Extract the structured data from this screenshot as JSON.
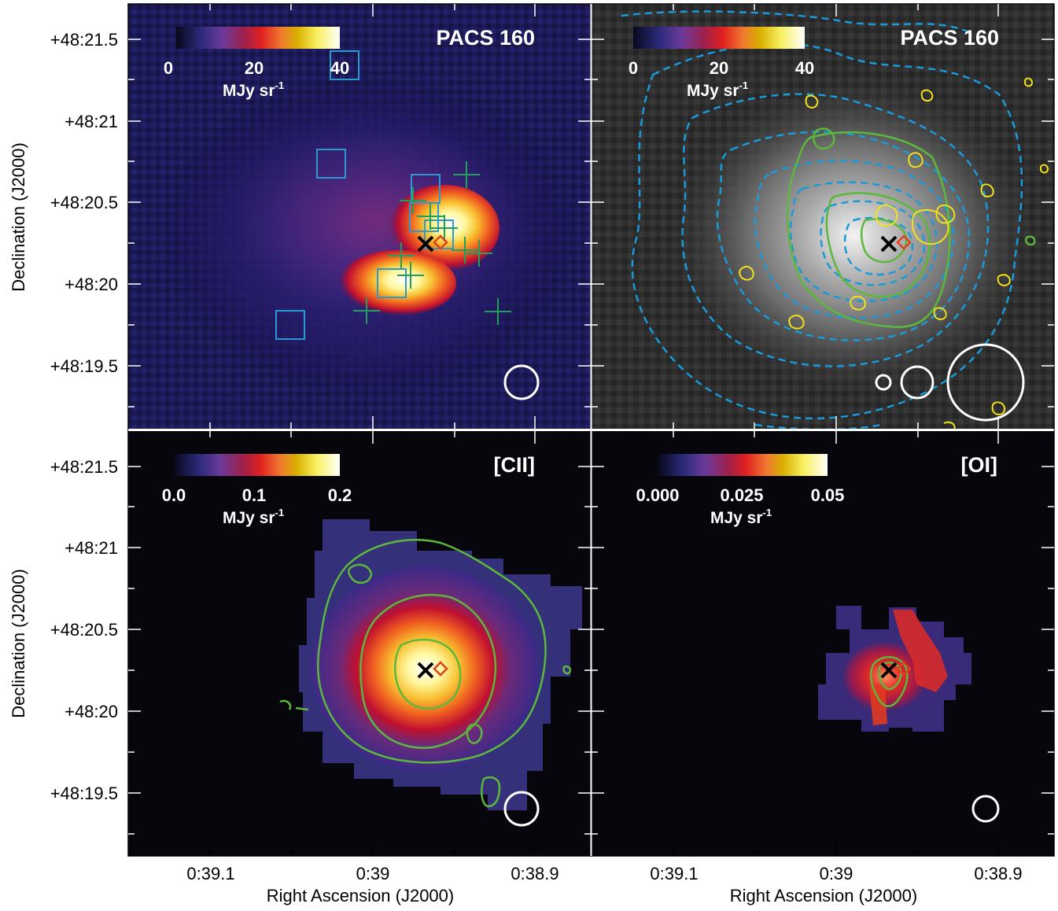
{
  "figure": {
    "y_axis_label": "Declination (J2000)",
    "x_axis_label": "Right Ascension (J2000)",
    "y_ticks": [
      "+48:21.5",
      "+48:21",
      "+48:20.5",
      "+48:20",
      "+48:19.5"
    ],
    "x_ticks": [
      "0:39.1",
      "0:39",
      "0:38.9"
    ]
  },
  "panels": [
    {
      "id": "tl",
      "title": "PACS 160",
      "colormap": "heat",
      "colorbar_ticks": [
        "0",
        "20",
        "40"
      ],
      "colorbar_unit": "MJy sr",
      "colorbar_unit_sup": "-1",
      "grayscale": false,
      "overlays": [
        "blue squares",
        "green crosses",
        "black cross",
        "red diamond",
        "beam circle"
      ]
    },
    {
      "id": "tr",
      "title": "PACS 160",
      "colormap": "heat",
      "colorbar_ticks": [
        "0",
        "20",
        "40"
      ],
      "colorbar_unit": "MJy sr",
      "colorbar_unit_sup": "-1",
      "grayscale": true,
      "overlays": [
        "blue dashed contours",
        "green contours",
        "yellow contours",
        "black cross",
        "red diamond",
        "three beam circles"
      ]
    },
    {
      "id": "bl",
      "title": "[CII]",
      "colormap": "heat",
      "colorbar_ticks": [
        "0.0",
        "0.1",
        "0.2"
      ],
      "colorbar_unit": "MJy sr",
      "colorbar_unit_sup": "-1",
      "grayscale": false,
      "overlays": [
        "green contours",
        "black cross",
        "red diamond",
        "beam circle"
      ]
    },
    {
      "id": "br",
      "title": "[OI]",
      "colormap": "heat",
      "colorbar_ticks": [
        "0.000",
        "0.025",
        "0.05"
      ],
      "colorbar_unit": "MJy sr",
      "colorbar_unit_sup": "-1",
      "grayscale": false,
      "overlays": [
        "green contours",
        "black cross",
        "red diamond",
        "beam circle"
      ]
    }
  ],
  "colors": {
    "background_dark": "#06060c",
    "contour_green": "#5cb83c",
    "contour_blue": "#1a9ad8",
    "contour_yellow": "#f2e21a",
    "marker_red": "#e0401a",
    "square_blue": "#2a9ad0",
    "cross_green": "#20a05a"
  }
}
